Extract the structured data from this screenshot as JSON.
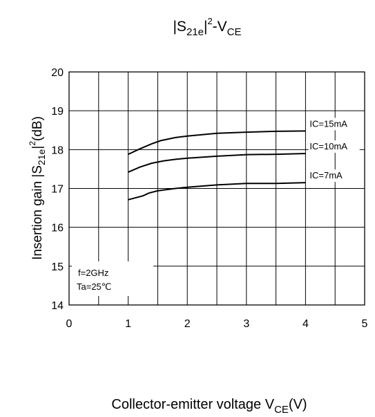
{
  "chart_data": {
    "type": "line",
    "title": {
      "base": "|S",
      "sub": "21e",
      "mid": "|",
      "sup": "2",
      "rest": "-V",
      "sub2": "CE"
    },
    "xlabel": {
      "base": "Collector-emitter voltage V",
      "sub": "CE",
      "rest": "(V)"
    },
    "ylabel": {
      "base": "Insertion gain |S",
      "sub": "21e",
      "mid": "|",
      "sup": "2",
      "rest": "(dB)"
    },
    "xlim": [
      0,
      5
    ],
    "ylim": [
      14,
      20
    ],
    "x_ticks": [
      "0",
      "1",
      "2",
      "3",
      "4",
      "5"
    ],
    "y_ticks": [
      "14",
      "15",
      "16",
      "17",
      "18",
      "19",
      "20"
    ],
    "x_grid_step": 0.5,
    "y_grid_step": 1,
    "grid": true,
    "series": [
      {
        "name": "IC=15mA",
        "points": [
          [
            1.0,
            17.88
          ],
          [
            1.2,
            18.02
          ],
          [
            1.4,
            18.15
          ],
          [
            1.55,
            18.23
          ],
          [
            1.8,
            18.31
          ],
          [
            2.0,
            18.35
          ],
          [
            2.5,
            18.42
          ],
          [
            3.0,
            18.45
          ],
          [
            3.5,
            18.47
          ],
          [
            4.0,
            18.48
          ]
        ]
      },
      {
        "name": "IC=10mA",
        "points": [
          [
            1.0,
            17.42
          ],
          [
            1.2,
            17.55
          ],
          [
            1.4,
            17.65
          ],
          [
            1.6,
            17.71
          ],
          [
            1.8,
            17.75
          ],
          [
            2.0,
            17.78
          ],
          [
            2.5,
            17.83
          ],
          [
            3.0,
            17.87
          ],
          [
            3.5,
            17.88
          ],
          [
            4.0,
            17.9
          ]
        ]
      },
      {
        "name": "IC=7mA",
        "points": [
          [
            1.0,
            16.71
          ],
          [
            1.25,
            16.81
          ],
          [
            1.35,
            16.88
          ],
          [
            1.5,
            16.94
          ],
          [
            1.8,
            17.0
          ],
          [
            2.0,
            17.03
          ],
          [
            2.5,
            17.09
          ],
          [
            3.0,
            17.13
          ],
          [
            3.5,
            17.13
          ],
          [
            4.0,
            17.15
          ]
        ]
      }
    ],
    "annotations": [
      "f=2GHz",
      "Ta=25℃"
    ]
  }
}
